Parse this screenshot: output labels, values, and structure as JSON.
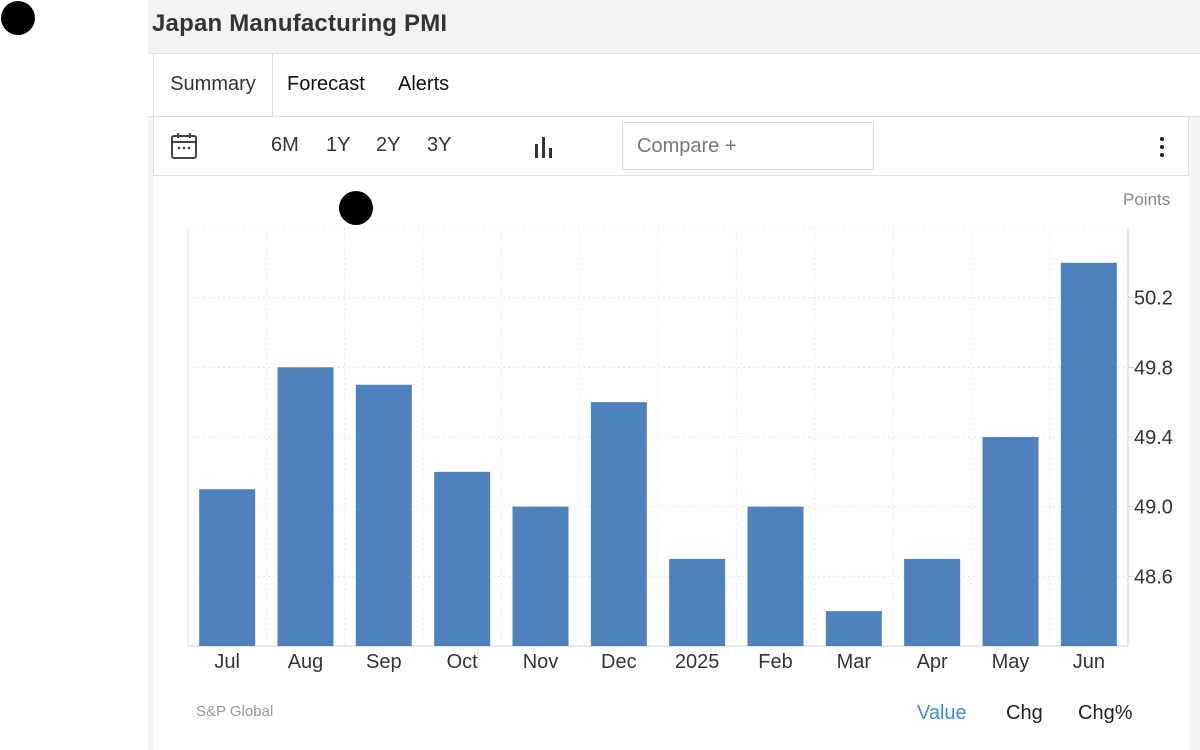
{
  "page": {
    "title": "Japan Manufacturing PMI"
  },
  "tabs": [
    {
      "label": "Summary"
    },
    {
      "label": "Forecast"
    },
    {
      "label": "Alerts"
    }
  ],
  "toolbar": {
    "ranges": [
      "6M",
      "1Y",
      "2Y",
      "3Y"
    ],
    "compare_placeholder": "Compare +"
  },
  "chart": {
    "unit_label": "Points",
    "source": "S&P Global",
    "modes": [
      "Value",
      "Chg",
      "Chg%"
    ],
    "active_mode": "Value",
    "bar_color": "#4f81bd"
  },
  "chart_data": {
    "type": "bar",
    "categories": [
      "Jul",
      "Aug",
      "Sep",
      "Oct",
      "Nov",
      "Dec",
      "2025",
      "Feb",
      "Mar",
      "Apr",
      "May",
      "Jun"
    ],
    "values": [
      49.1,
      49.8,
      49.7,
      49.2,
      49.0,
      49.6,
      48.7,
      49.0,
      48.4,
      48.7,
      49.4,
      50.4
    ],
    "yticks": [
      48.6,
      49.0,
      49.4,
      49.8,
      50.2
    ],
    "ylim": [
      48.2,
      50.6
    ],
    "grid": true,
    "y_axis_position": "right"
  }
}
